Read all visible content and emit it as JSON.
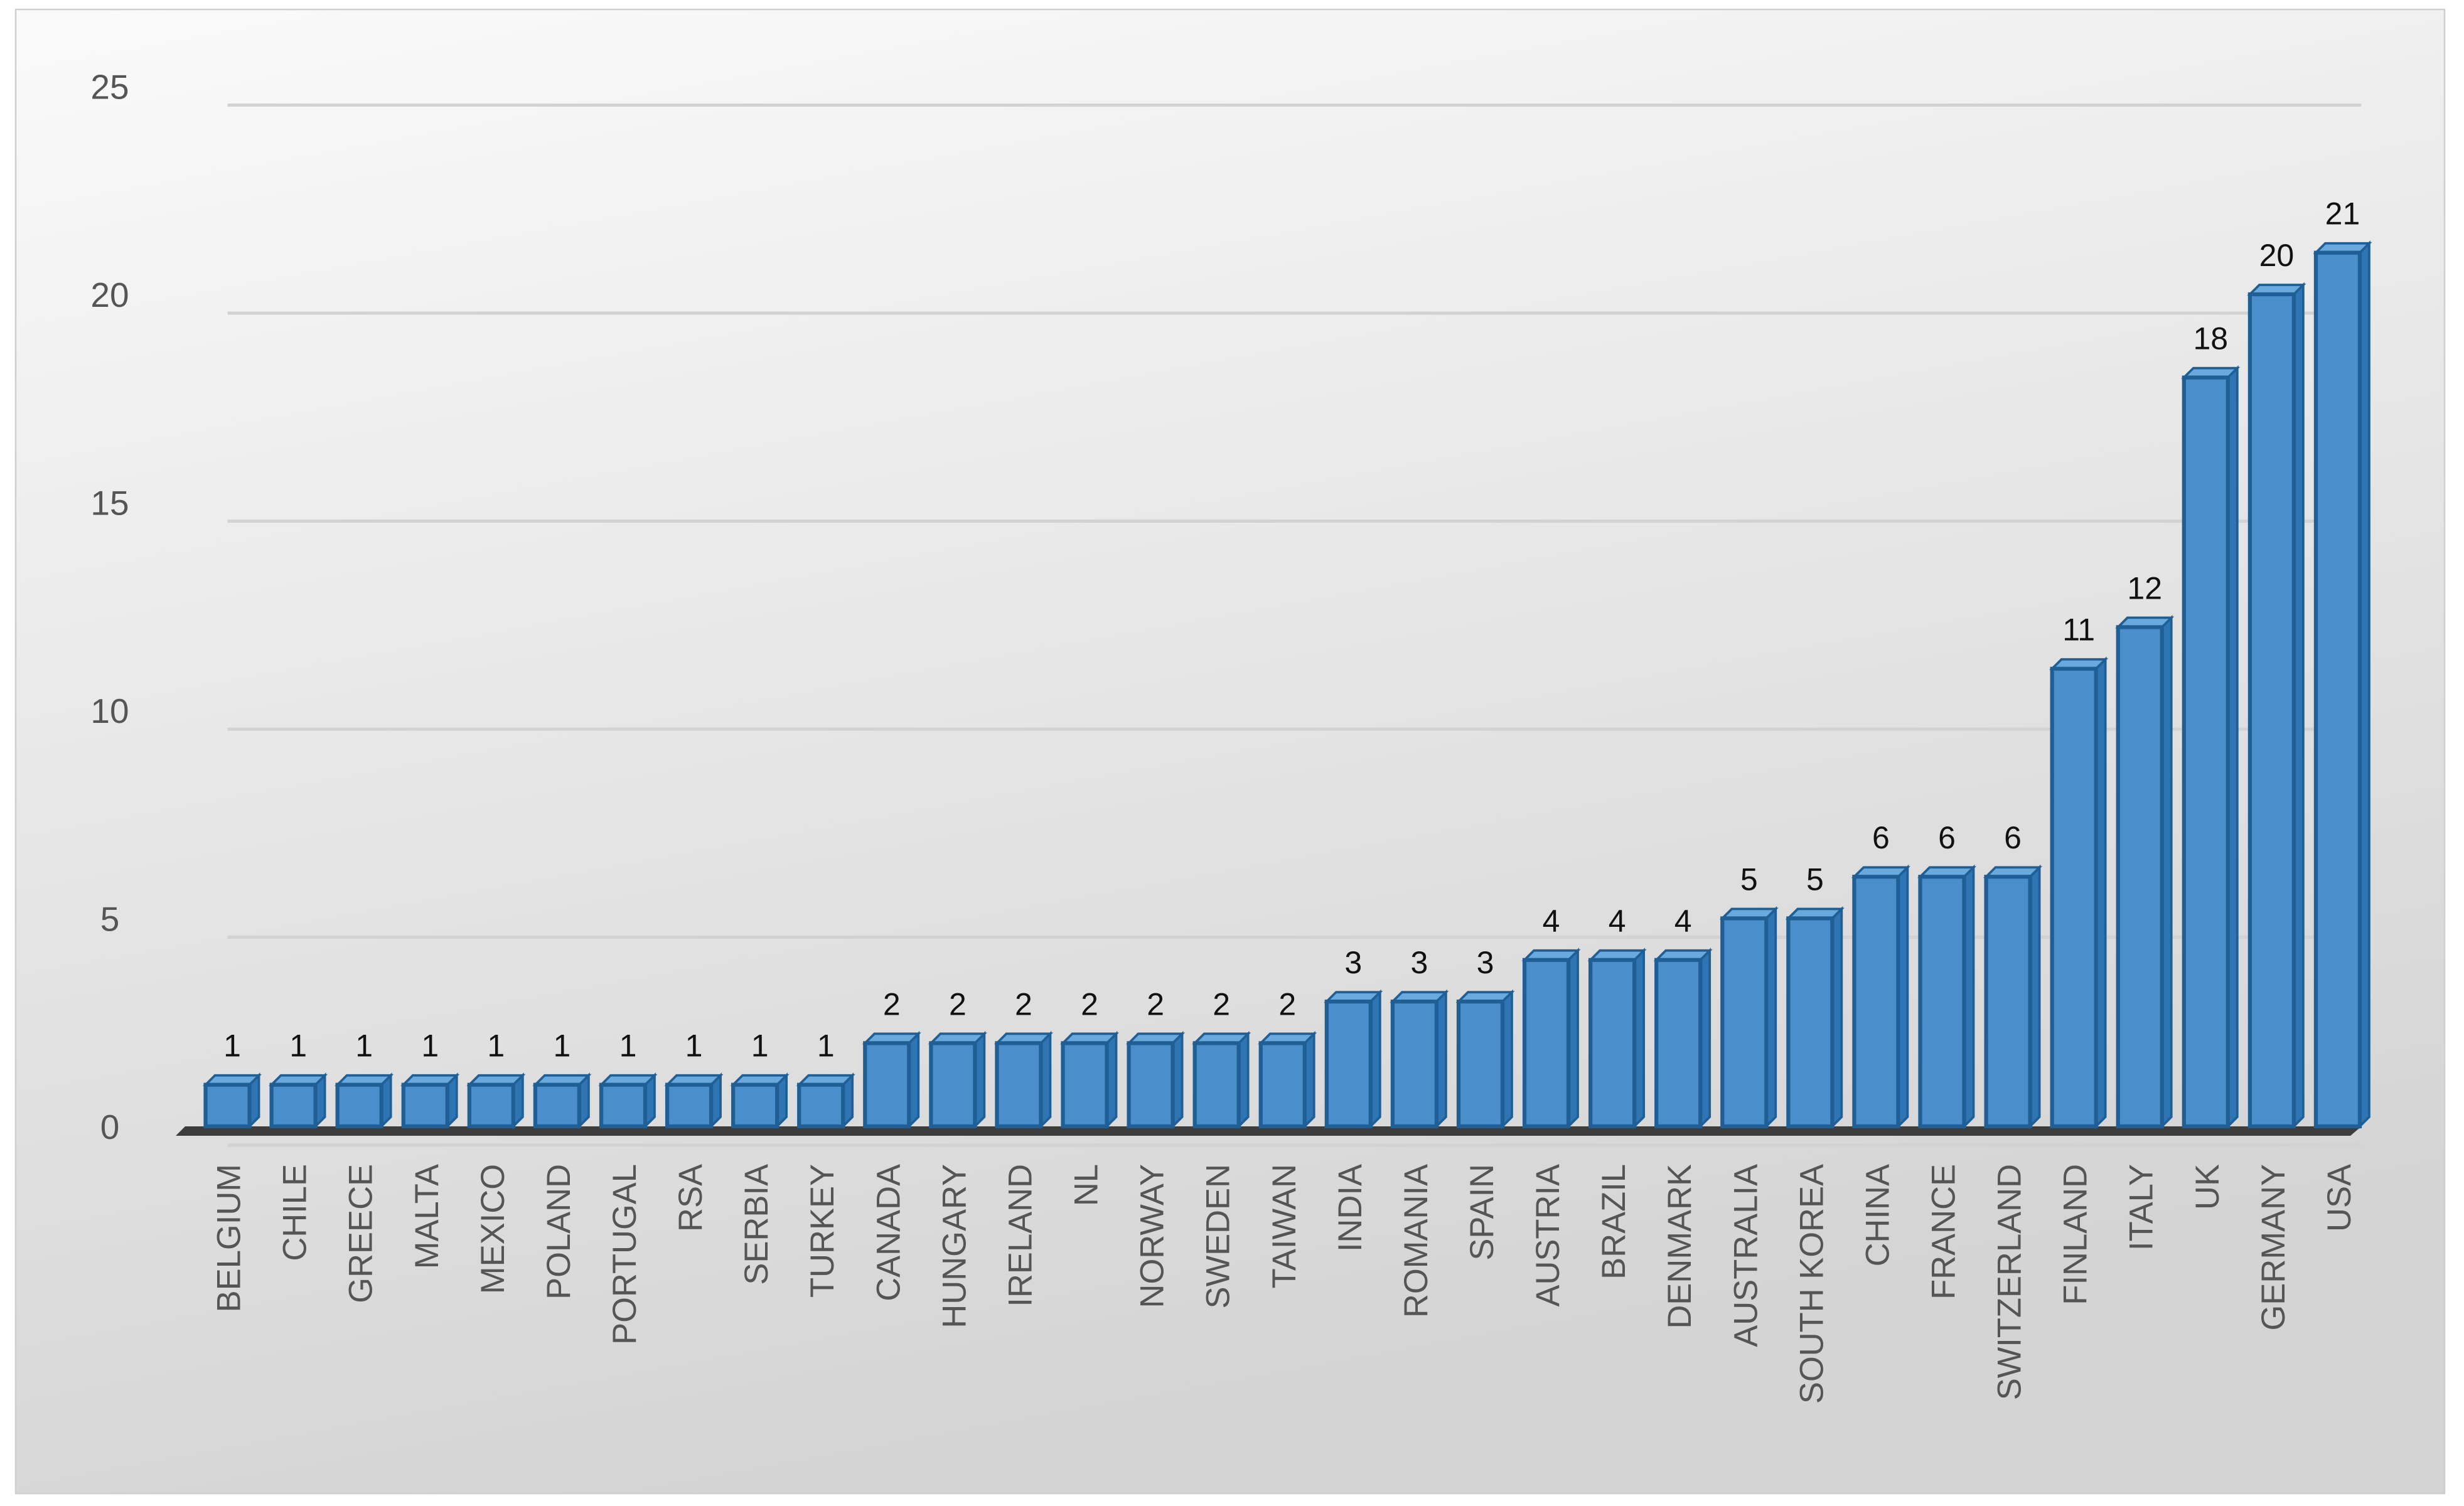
{
  "chart_data": {
    "type": "bar",
    "categories": [
      "BELGIUM",
      "CHILE",
      "GREECE",
      "MALTA",
      "MEXICO",
      "POLAND",
      "PORTUGAL",
      "RSA",
      "SERBIA",
      "TURKEY",
      "CANADA",
      "HUNGARY",
      "IRELAND",
      "NL",
      "NORWAY",
      "SWEDEN",
      "TAIWAN",
      "INDIA",
      "ROMANIA",
      "SPAIN",
      "AUSTRIA",
      "BRAZIL",
      "DENMARK",
      "AUSTRALIA",
      "SOUTH KOREA",
      "CHINA",
      "FRANCE",
      "SWITZERLAND",
      "FINLAND",
      "ITALY",
      "UK",
      "GERMANY",
      "USA"
    ],
    "values": [
      1,
      1,
      1,
      1,
      1,
      1,
      1,
      1,
      1,
      1,
      2,
      2,
      2,
      2,
      2,
      2,
      2,
      3,
      3,
      3,
      4,
      4,
      4,
      5,
      5,
      6,
      6,
      6,
      11,
      12,
      18,
      20,
      21
    ],
    "color": "#4a8fcc",
    "ylim": [
      0,
      25
    ],
    "yticks": [
      0,
      5,
      10,
      15,
      20,
      25
    ],
    "grid": true
  }
}
